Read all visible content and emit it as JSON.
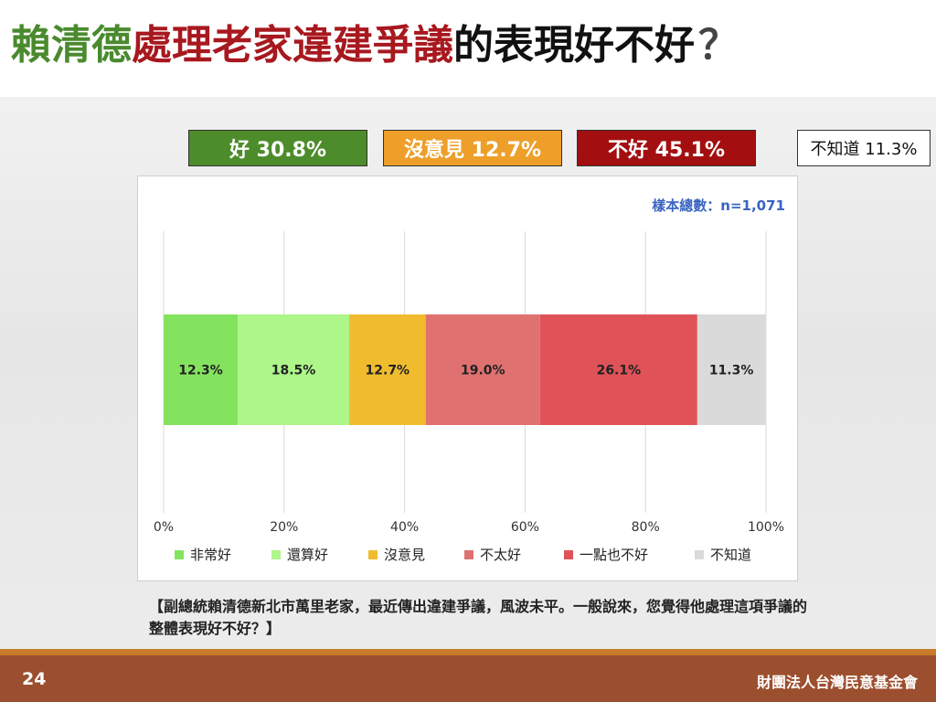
{
  "title": {
    "part1": "賴清德",
    "part2": "處理老家違建爭議",
    "part3": "的表現好不好",
    "part4": "？"
  },
  "summary": {
    "good": "好 30.8%",
    "neutral": "沒意見 12.7%",
    "bad": "不好 45.1%",
    "dont_know": "不知道 11.3%"
  },
  "colors": {
    "summary_good": "#4d8c2a",
    "summary_neutral": "#ed9f2a",
    "summary_bad": "#a30f10",
    "footer": "#9c4f2e"
  },
  "chart_data": {
    "type": "bar",
    "orientation": "horizontal-stacked",
    "sample_note": "樣本總數：n=1,071",
    "xlim": [
      0,
      100
    ],
    "x_ticks": [
      "0%",
      "20%",
      "40%",
      "60%",
      "80%",
      "100%"
    ],
    "grid": true,
    "legend_position": "bottom",
    "series": [
      {
        "name": "非常好",
        "value": 12.3,
        "label": "12.3%",
        "color": "#84e35e"
      },
      {
        "name": "還算好",
        "value": 18.5,
        "label": "18.5%",
        "color": "#aef58a"
      },
      {
        "name": "沒意見",
        "value": 12.7,
        "label": "12.7%",
        "color": "#f0bc2e"
      },
      {
        "name": "不太好",
        "value": 19.0,
        "label": "19.0%",
        "color": "#e07171"
      },
      {
        "name": "一點也不好",
        "value": 26.1,
        "label": "26.1%",
        "color": "#df5358"
      },
      {
        "name": "不知道",
        "value": 11.3,
        "label": "11.3%",
        "color": "#dadada"
      }
    ]
  },
  "question": "【副總統賴清德新北市萬里老家，最近傳出違建爭議，風波未平。一般說來，您覺得他處理這項爭議的整體表現好不好？】",
  "footer": {
    "page_number": "24",
    "organization": "財團法人台灣民意基金會"
  }
}
